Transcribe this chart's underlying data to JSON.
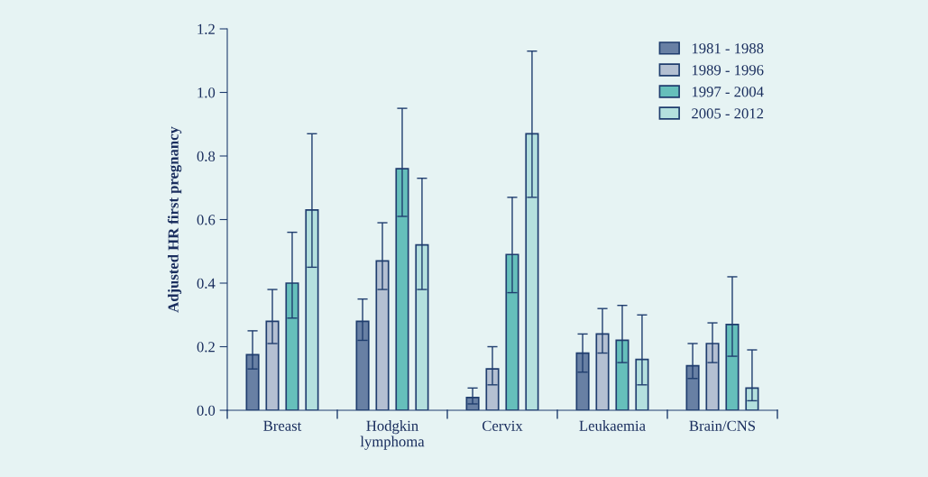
{
  "chart_data": {
    "type": "bar",
    "ylabel": "Adjusted HR first pregnancy",
    "categories": [
      "Breast",
      "Hodgkin\nlymphoma",
      "Cervix",
      "Leukaemia",
      "Brain/CNS"
    ],
    "series": [
      {
        "name": "1981 - 1988",
        "color": "#6880a4",
        "values": [
          0.175,
          0.28,
          0.04,
          0.18,
          0.14
        ],
        "errors": [
          [
            0.13,
            0.25
          ],
          [
            0.22,
            0.35
          ],
          [
            0.02,
            0.07
          ],
          [
            0.12,
            0.24
          ],
          [
            0.1,
            0.21
          ]
        ]
      },
      {
        "name": "1989 - 1996",
        "color": "#b4c0d2",
        "values": [
          0.28,
          0.47,
          0.13,
          0.24,
          0.21
        ],
        "errors": [
          [
            0.21,
            0.38
          ],
          [
            0.38,
            0.59
          ],
          [
            0.08,
            0.2
          ],
          [
            0.18,
            0.32
          ],
          [
            0.15,
            0.275
          ]
        ]
      },
      {
        "name": "1997 - 2004",
        "color": "#66bfbb",
        "values": [
          0.4,
          0.76,
          0.49,
          0.22,
          0.27
        ],
        "errors": [
          [
            0.29,
            0.56
          ],
          [
            0.61,
            0.95
          ],
          [
            0.37,
            0.67
          ],
          [
            0.15,
            0.33
          ],
          [
            0.17,
            0.42
          ]
        ]
      },
      {
        "name": "2005 - 2012",
        "color": "#b4e0de",
        "values": [
          0.63,
          0.52,
          0.87,
          0.16,
          0.07
        ],
        "errors": [
          [
            0.45,
            0.87
          ],
          [
            0.38,
            0.73
          ],
          [
            0.67,
            1.13
          ],
          [
            0.08,
            0.3
          ],
          [
            0.03,
            0.19
          ]
        ]
      }
    ],
    "ylim": [
      0,
      1.2
    ],
    "yticks": [
      {
        "value": 0,
        "label": "0.0"
      },
      {
        "value": 0.2,
        "label": "0.2"
      },
      {
        "value": 0.4,
        "label": "0.4"
      },
      {
        "value": 0.6,
        "label": "0.6"
      },
      {
        "value": 0.8,
        "label": "0.8"
      },
      {
        "value": 1.0,
        "label": "1.0"
      },
      {
        "value": 1.2,
        "label": "1.2"
      }
    ],
    "grid": false,
    "legend": "top right"
  }
}
